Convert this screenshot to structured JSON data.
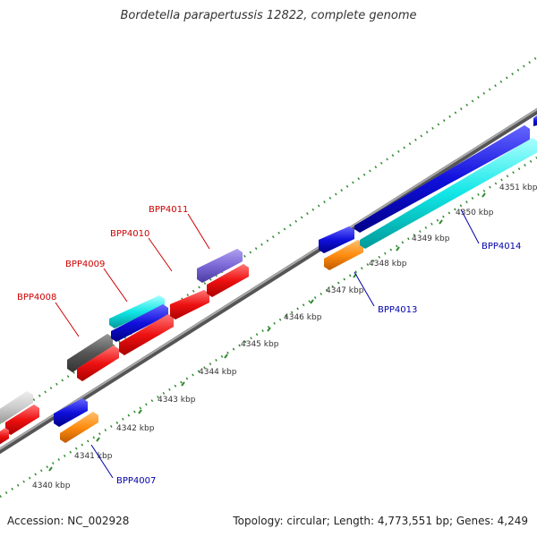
{
  "title": "Bordetella parapertussis 12822, complete genome",
  "footer": {
    "accession": "Accession: NC_002928",
    "summary": "Topology: circular; Length: 4,773,551 bp; Genes: 4,249"
  },
  "ticks": [
    {
      "id": "4340",
      "label": "4340 kbp"
    },
    {
      "id": "4341",
      "label": "4341 kbp"
    },
    {
      "id": "4342",
      "label": "4342 kbp"
    },
    {
      "id": "4343",
      "label": "4343 kbp"
    },
    {
      "id": "4344",
      "label": "4344 kbp"
    },
    {
      "id": "4345",
      "label": "4345 kbp"
    },
    {
      "id": "4346",
      "label": "4346 kbp"
    },
    {
      "id": "4347",
      "label": "4347 kbp"
    },
    {
      "id": "4348",
      "label": "4348 kbp"
    },
    {
      "id": "4349",
      "label": "4349 kbp"
    },
    {
      "id": "4350",
      "label": "4350 kbp"
    },
    {
      "id": "4351",
      "label": "4351 kbp"
    }
  ],
  "gene_labels": [
    {
      "id": "bpp4007",
      "text": "BPP4007",
      "color": "#0000aa"
    },
    {
      "id": "bpp4008",
      "text": "BPP4008",
      "color": "#cc0000"
    },
    {
      "id": "bpp4009",
      "text": "BPP4009",
      "color": "#cc0000"
    },
    {
      "id": "bpp4010",
      "text": "BPP4010",
      "color": "#cc0000"
    },
    {
      "id": "bpp4011",
      "text": "BPP4011",
      "color": "#cc0000"
    },
    {
      "id": "bpp4013",
      "text": "BPP4013",
      "color": "#0000aa"
    },
    {
      "id": "bpp4014",
      "text": "BPP4014",
      "color": "#0000aa"
    }
  ],
  "colors": {
    "backbone": "#7a7a7a",
    "tick_dots": "#2e8b2e",
    "red": "#ee1111",
    "blue": "#1010dd",
    "cyan": "#11e6e6",
    "orange": "#ff8c10",
    "gray_dark": "#555555",
    "gray_light": "#cccccc",
    "purple": "#7b68d6"
  }
}
